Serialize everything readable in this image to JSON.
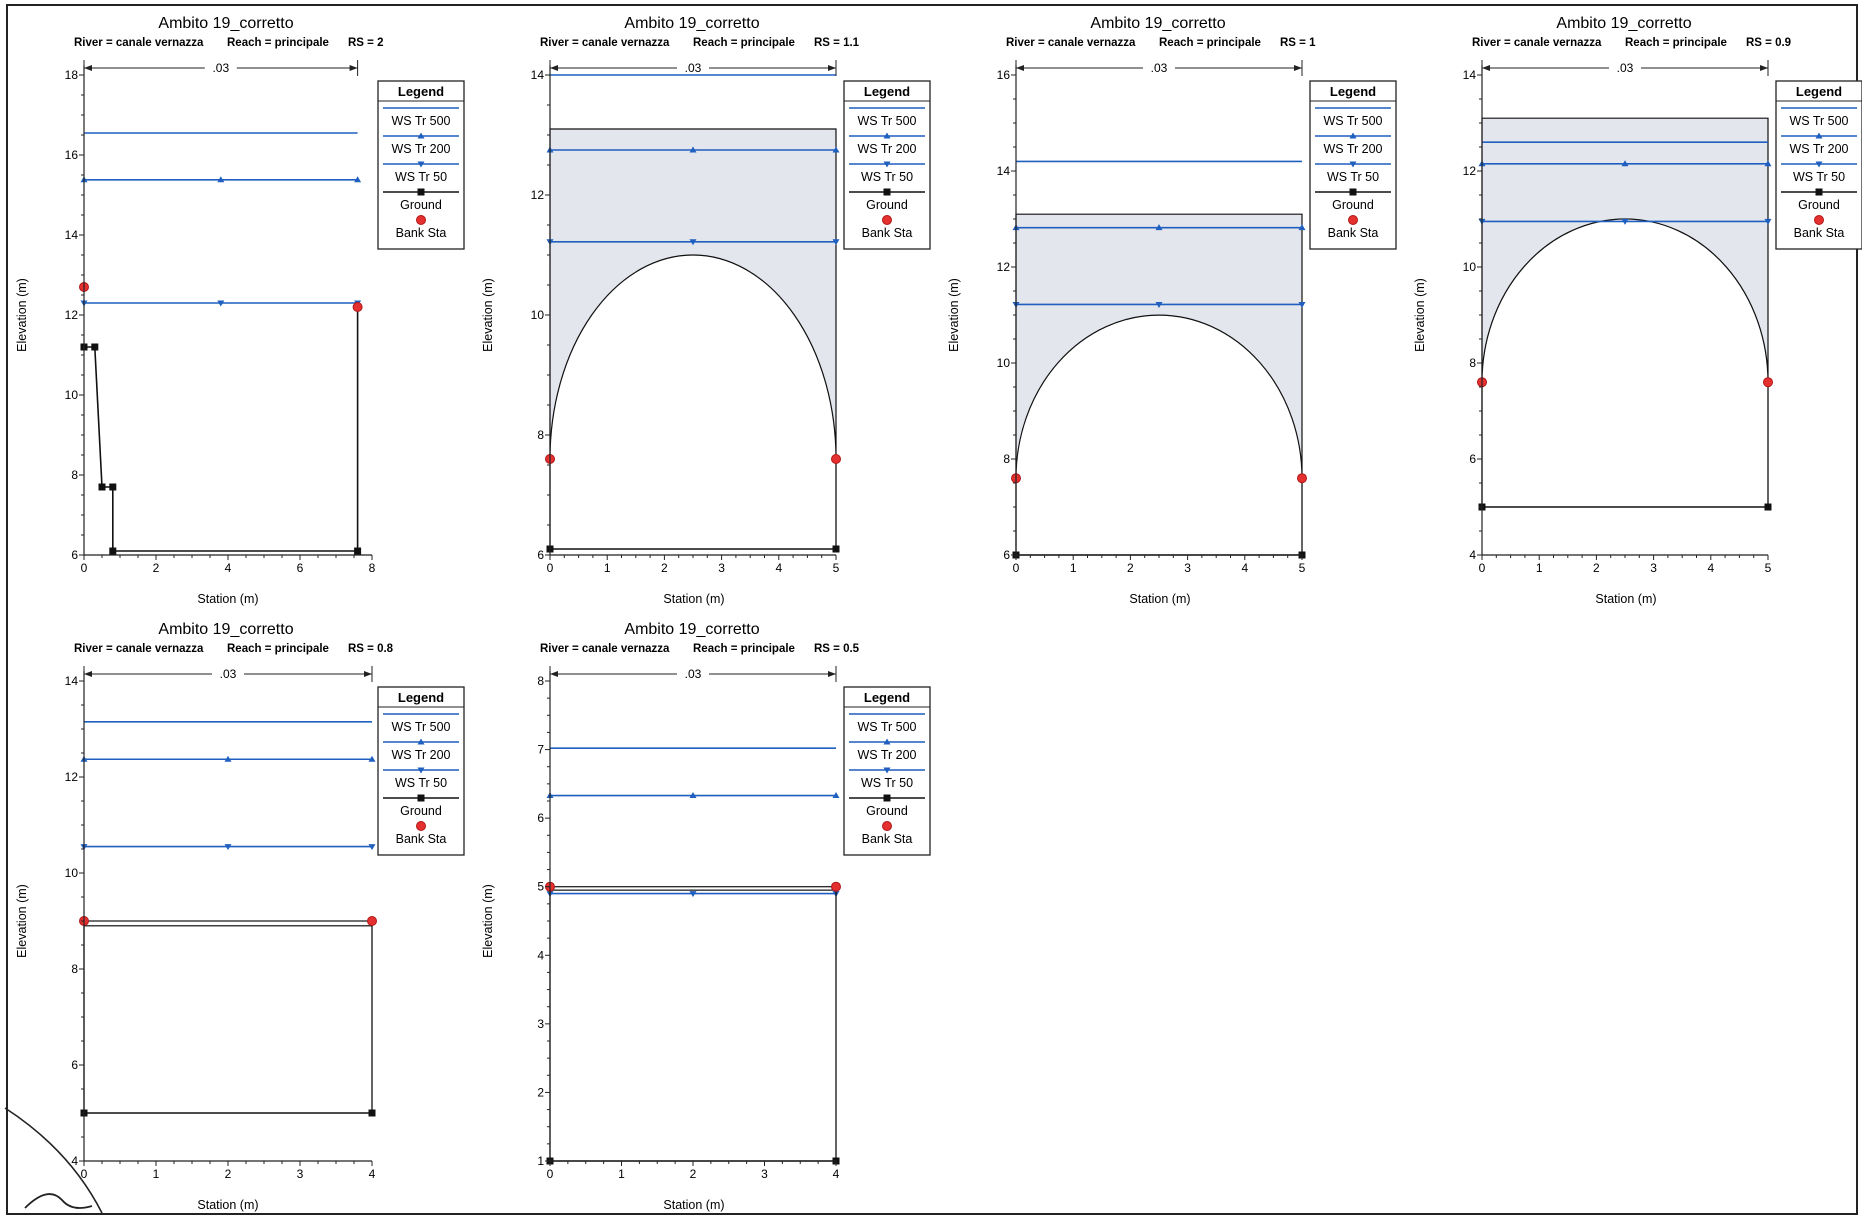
{
  "chart_data": [
    {
      "type": "cross-section",
      "title": "Ambito 19_corretto",
      "subtitle": {
        "river": "River = canale vernazza",
        "reach": "Reach = principale",
        "rs": "RS = 2"
      },
      "xlabel": "Station (m)",
      "ylabel": "Elevation (m)",
      "xlim": [
        0,
        8
      ],
      "ylim": [
        6,
        18
      ],
      "xticks": [
        0,
        2,
        4,
        6,
        8
      ],
      "yticks": [
        6,
        8,
        10,
        12,
        14,
        16,
        18
      ],
      "manning_label": ".03",
      "manning_range": [
        0,
        7.6
      ],
      "ground": [
        [
          0,
          11.2
        ],
        [
          0.3,
          11.2
        ],
        [
          0.5,
          7.7
        ],
        [
          0.8,
          7.7
        ],
        [
          0.8,
          6.1
        ],
        [
          7.6,
          6.1
        ],
        [
          7.6,
          12.2
        ]
      ],
      "bank_sta": [
        [
          0,
          12.7
        ],
        [
          7.6,
          12.2
        ]
      ],
      "ws": [
        {
          "name": "WS Tr 500",
          "x": [
            0,
            7.6
          ],
          "y": 16.55
        },
        {
          "name": "WS Tr 200",
          "x": [
            0,
            7.6
          ],
          "y": 15.38
        },
        {
          "name": "WS Tr 50",
          "x": [
            0,
            7.6
          ],
          "y": 12.3
        }
      ]
    },
    {
      "type": "cross-section",
      "title": "Ambito 19_corretto",
      "subtitle": {
        "river": "River = canale vernazza",
        "reach": "Reach = principale",
        "rs": "RS = 1.1"
      },
      "xlabel": "Station (m)",
      "ylabel": "Elevation (m)",
      "xlim": [
        0,
        5
      ],
      "ylim": [
        6,
        14
      ],
      "xticks": [
        0,
        1,
        2,
        3,
        4,
        5
      ],
      "yticks": [
        6,
        8,
        10,
        12,
        14
      ],
      "manning_label": ".03",
      "manning_range": [
        0,
        5
      ],
      "ground": [
        [
          0,
          6.1
        ],
        [
          5,
          6.1
        ]
      ],
      "arch": {
        "x0": 0,
        "x1": 5,
        "spring": 7.6,
        "crown": 11.0
      },
      "deck": {
        "x0": 0,
        "x1": 5,
        "top": 13.1
      },
      "bank_sta": [
        [
          0,
          7.6
        ],
        [
          5,
          7.6
        ]
      ],
      "ws": [
        {
          "name": "WS Tr 500",
          "x": [
            0,
            5
          ],
          "y": 14.0
        },
        {
          "name": "WS Tr 200",
          "x": [
            0,
            5
          ],
          "y": 12.75
        },
        {
          "name": "WS Tr 50",
          "x": [
            0,
            5
          ],
          "y": 11.22
        }
      ]
    },
    {
      "type": "cross-section",
      "title": "Ambito 19_corretto",
      "subtitle": {
        "river": "River = canale vernazza",
        "reach": "Reach = principale",
        "rs": "RS = 1"
      },
      "xlabel": "Station (m)",
      "ylabel": "Elevation (m)",
      "xlim": [
        0,
        5
      ],
      "ylim": [
        6,
        16
      ],
      "xticks": [
        0,
        1,
        2,
        3,
        4,
        5
      ],
      "yticks": [
        6,
        8,
        10,
        12,
        14,
        16
      ],
      "manning_label": ".03",
      "manning_range": [
        0,
        5
      ],
      "ground": [
        [
          0,
          6.0
        ],
        [
          5,
          6.0
        ]
      ],
      "arch": {
        "x0": 0,
        "x1": 5,
        "spring": 7.6,
        "crown": 11.0
      },
      "deck": {
        "x0": 0,
        "x1": 5,
        "top": 13.1
      },
      "bank_sta": [
        [
          0,
          7.6
        ],
        [
          5,
          7.6
        ]
      ],
      "ws": [
        {
          "name": "WS Tr 500",
          "x": [
            0,
            5
          ],
          "y": 14.2
        },
        {
          "name": "WS Tr 200",
          "x": [
            0,
            5
          ],
          "y": 12.82
        },
        {
          "name": "WS Tr 50",
          "x": [
            0,
            5
          ],
          "y": 11.22
        }
      ]
    },
    {
      "type": "cross-section",
      "title": "Ambito 19_corretto",
      "subtitle": {
        "river": "River = canale vernazza",
        "reach": "Reach = principale",
        "rs": "RS = 0.9"
      },
      "xlabel": "Station (m)",
      "ylabel": "Elevation (m)",
      "xlim": [
        0,
        5
      ],
      "ylim": [
        4,
        14
      ],
      "xticks": [
        0,
        1,
        2,
        3,
        4,
        5
      ],
      "yticks": [
        4,
        6,
        8,
        10,
        12,
        14
      ],
      "manning_label": ".03",
      "manning_range": [
        0,
        5
      ],
      "ground": [
        [
          0,
          5.0
        ],
        [
          5,
          5.0
        ]
      ],
      "arch": {
        "x0": 0,
        "x1": 5,
        "spring": 7.6,
        "crown": 11.0
      },
      "deck": {
        "x0": 0,
        "x1": 5,
        "top": 13.1
      },
      "bank_sta": [
        [
          0,
          7.6
        ],
        [
          5,
          7.6
        ]
      ],
      "ws": [
        {
          "name": "WS Tr 500",
          "x": [
            0,
            5
          ],
          "y": 12.6
        },
        {
          "name": "WS Tr 200",
          "x": [
            0,
            5
          ],
          "y": 12.15
        },
        {
          "name": "WS Tr 50",
          "x": [
            0,
            5
          ],
          "y": 10.95
        }
      ]
    },
    {
      "type": "cross-section",
      "title": "Ambito 19_corretto",
      "subtitle": {
        "river": "River = canale vernazza",
        "reach": "Reach = principale",
        "rs": "RS = 0.8"
      },
      "xlabel": "Station (m)",
      "ylabel": "Elevation (m)",
      "xlim": [
        0,
        4
      ],
      "ylim": [
        4,
        14
      ],
      "xticks": [
        0,
        1,
        2,
        3,
        4
      ],
      "yticks": [
        4,
        6,
        8,
        10,
        12,
        14
      ],
      "manning_label": ".03",
      "manning_range": [
        0,
        4
      ],
      "ground": [
        [
          0,
          5.0
        ],
        [
          4,
          5.0
        ]
      ],
      "deck": {
        "x0": 0,
        "x1": 4,
        "top": 9.0,
        "bottom": 8.9,
        "fill": false
      },
      "bank_sta": [
        [
          0,
          9.0
        ],
        [
          4,
          9.0
        ]
      ],
      "ws": [
        {
          "name": "WS Tr 500",
          "x": [
            0,
            4
          ],
          "y": 13.15
        },
        {
          "name": "WS Tr 200",
          "x": [
            0,
            4
          ],
          "y": 12.37
        },
        {
          "name": "WS Tr 50",
          "x": [
            0,
            4
          ],
          "y": 10.55
        }
      ]
    },
    {
      "type": "cross-section",
      "title": "Ambito 19_corretto",
      "subtitle": {
        "river": "River = canale vernazza",
        "reach": "Reach = principale",
        "rs": "RS = 0.5"
      },
      "xlabel": "Station (m)",
      "ylabel": "Elevation (m)",
      "xlim": [
        0,
        4
      ],
      "ylim": [
        1,
        8
      ],
      "xticks": [
        0,
        1,
        2,
        3,
        4
      ],
      "yticks": [
        1,
        2,
        3,
        4,
        5,
        6,
        7,
        8
      ],
      "manning_label": ".03",
      "manning_range": [
        0,
        4
      ],
      "ground": [
        [
          0,
          1.0
        ],
        [
          4,
          1.0
        ]
      ],
      "deck": {
        "x0": 0,
        "x1": 4,
        "top": 5.0,
        "bottom": 4.95,
        "fill": false
      },
      "bank_sta": [
        [
          0,
          5.0
        ],
        [
          4,
          5.0
        ]
      ],
      "ws": [
        {
          "name": "WS Tr 500",
          "x": [
            0,
            4
          ],
          "y": 7.02
        },
        {
          "name": "WS Tr 200",
          "x": [
            0,
            4
          ],
          "y": 6.33
        },
        {
          "name": "WS Tr 50",
          "x": [
            0,
            4
          ],
          "y": 4.9
        }
      ]
    }
  ],
  "legend": {
    "title": "Legend",
    "items": [
      {
        "label": "WS Tr 500",
        "marker": "none"
      },
      {
        "label": "WS Tr 200",
        "marker": "triangle-up"
      },
      {
        "label": "WS Tr 50",
        "marker": "triangle-down"
      },
      {
        "label": "Ground",
        "marker": "square"
      },
      {
        "label": "Bank Sta",
        "marker": "circle"
      }
    ]
  },
  "colors": {
    "ws_line": "#1f5fbf",
    "ground": "#111111",
    "bank_sta": "#e53030",
    "bank_sta_edge": "#b01818",
    "deck_fill": "#e4e6ee",
    "axis": "#222222"
  }
}
